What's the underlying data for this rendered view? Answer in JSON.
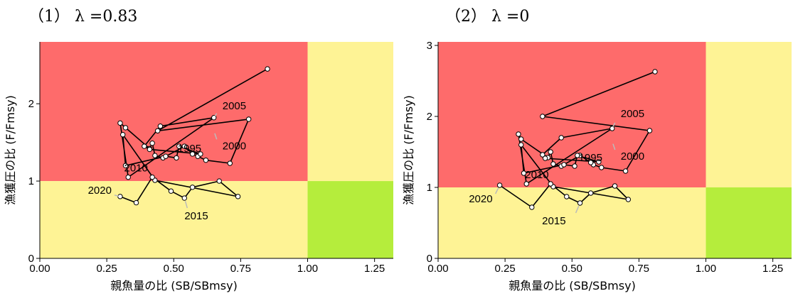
{
  "chart_data": [
    {
      "type": "line",
      "title": "（1） λ =0.83",
      "xlabel": "親魚量の比 (SB/SBmsy)",
      "ylabel": "漁獲圧の比 (F/Fmsy)",
      "xlim": [
        0,
        1.32
      ],
      "ylim": [
        0,
        2.8
      ],
      "xticks": [
        "0.00",
        "0.25",
        "0.50",
        "0.75",
        "1.00",
        "1.25"
      ],
      "yticks": [
        "0",
        "1",
        "2"
      ],
      "grid": false,
      "zones": [
        {
          "name": "overfishing-overfished",
          "x": [
            0,
            1.0
          ],
          "y": [
            1.0,
            2.8
          ],
          "color": "#fe6b6b"
        },
        {
          "name": "overfishing-healthy",
          "x": [
            1.0,
            1.32
          ],
          "y": [
            1.0,
            2.8
          ],
          "color": "#fef395"
        },
        {
          "name": "underfishing-overfished",
          "x": [
            0,
            1.0
          ],
          "y": [
            0,
            1.0
          ],
          "color": "#fef395"
        },
        {
          "name": "underfishing-healthy",
          "x": [
            1.0,
            1.32
          ],
          "y": [
            0,
            1.0
          ],
          "color": "#b5ed3c"
        }
      ],
      "series": [
        {
          "x": [
            0.85,
            0.44,
            0.78,
            0.71,
            0.62,
            0.59,
            0.57,
            0.54,
            0.46,
            0.43,
            0.42,
            0.41,
            0.32,
            0.3,
            0.33,
            0.65,
            0.45,
            0.39,
            0.41,
            0.6,
            0.52,
            0.51,
            0.47,
            0.32,
            0.31,
            0.43,
            0.74,
            0.67,
            0.57,
            0.54,
            0.49,
            0.42,
            0.36,
            0.3
          ],
          "y": [
            2.45,
            1.65,
            1.8,
            1.23,
            1.27,
            1.32,
            1.35,
            1.45,
            1.3,
            1.33,
            1.49,
            1.42,
            1.69,
            1.75,
            1.05,
            1.82,
            1.71,
            1.45,
            1.41,
            1.35,
            1.45,
            1.3,
            1.32,
            1.2,
            1.6,
            1.01,
            0.8,
            1.0,
            0.92,
            0.78,
            0.87,
            1.05,
            0.72,
            0.8
          ]
        }
      ],
      "annotations": [
        {
          "text": "2005",
          "x": 0.65,
          "y": 1.82
        },
        {
          "text": "2000",
          "x": 0.65,
          "y": 1.65
        },
        {
          "text": "1995",
          "x": 0.52,
          "y": 1.45
        },
        {
          "text": "2010",
          "x": 0.32,
          "y": 1.05
        },
        {
          "text": "2020",
          "x": 0.3,
          "y": 0.8
        },
        {
          "text": "2015",
          "x": 0.54,
          "y": 0.78
        }
      ]
    },
    {
      "type": "line",
      "title": "（2） λ =0",
      "xlabel": "親魚量の比 (SB/SBmsy)",
      "ylabel": "漁獲圧の比 (F/Fmsy)",
      "xlim": [
        0,
        1.32
      ],
      "ylim": [
        0,
        3.05
      ],
      "xticks": [
        "0.00",
        "0.25",
        "0.50",
        "0.75",
        "1.00",
        "1.25"
      ],
      "yticks": [
        "0",
        "1",
        "2",
        "3"
      ],
      "grid": false,
      "zones": [
        {
          "name": "overfishing-overfished",
          "x": [
            0,
            1.0
          ],
          "y": [
            1.0,
            3.05
          ],
          "color": "#fe6b6b"
        },
        {
          "name": "overfishing-healthy",
          "x": [
            1.0,
            1.32
          ],
          "y": [
            1.0,
            3.05
          ],
          "color": "#fef395"
        },
        {
          "name": "underfishing-overfished",
          "x": [
            0,
            1.0
          ],
          "y": [
            0,
            1.0
          ],
          "color": "#fef395"
        },
        {
          "name": "underfishing-healthy",
          "x": [
            1.0,
            1.32
          ],
          "y": [
            0,
            1.0
          ],
          "color": "#b5ed3c"
        }
      ],
      "series": [
        {
          "x": [
            0.81,
            0.39,
            0.79,
            0.7,
            0.61,
            0.58,
            0.57,
            0.53,
            0.46,
            0.43,
            0.42,
            0.41,
            0.31,
            0.3,
            0.33,
            0.65,
            0.46,
            0.39,
            0.4,
            0.6,
            0.52,
            0.51,
            0.47,
            0.32,
            0.31,
            0.43,
            0.71,
            0.66,
            0.57,
            0.53,
            0.48,
            0.42,
            0.35,
            0.23
          ],
          "y": [
            2.63,
            2.0,
            1.8,
            1.23,
            1.28,
            1.32,
            1.35,
            1.45,
            1.3,
            1.33,
            1.5,
            1.42,
            1.68,
            1.75,
            1.05,
            1.83,
            1.7,
            1.46,
            1.41,
            1.36,
            1.45,
            1.3,
            1.32,
            1.2,
            1.6,
            1.01,
            0.83,
            1.02,
            0.92,
            0.78,
            0.87,
            1.05,
            0.72,
            1.03
          ]
        }
      ],
      "annotations": [
        {
          "text": "2005",
          "x": 0.65,
          "y": 1.83
        },
        {
          "text": "2000",
          "x": 0.65,
          "y": 1.65
        },
        {
          "text": "1995",
          "x": 0.53,
          "y": 1.45
        },
        {
          "text": "2010",
          "x": 0.33,
          "y": 1.05
        },
        {
          "text": "2020",
          "x": 0.23,
          "y": 1.03
        },
        {
          "text": "2015",
          "x": 0.53,
          "y": 0.78
        }
      ]
    }
  ]
}
